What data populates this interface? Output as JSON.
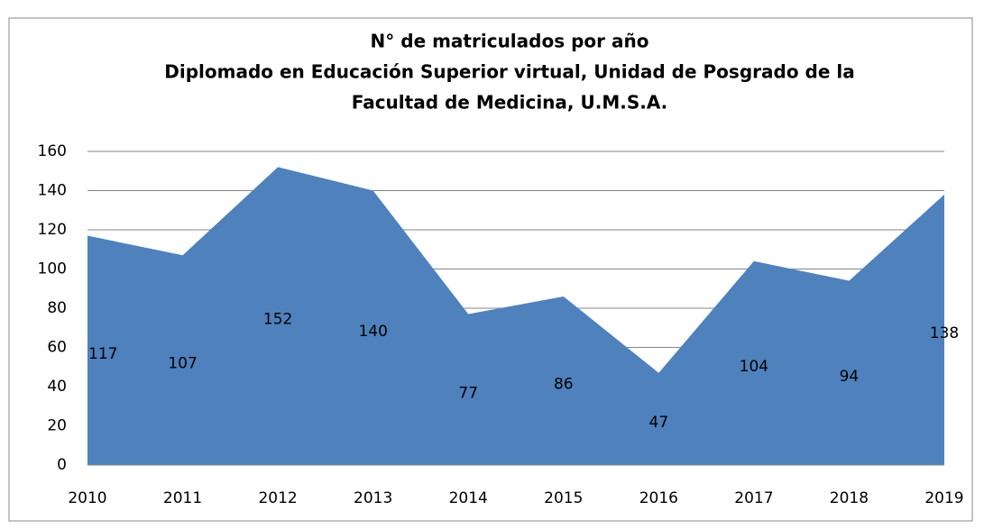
{
  "chart_data": {
    "type": "area",
    "title": [
      "N° de matriculados por año",
      "Diplomado en Educación Superior virtual, Unidad de Posgrado de la",
      "Facultad de Medicina, U.M.S.A."
    ],
    "categories": [
      "2010",
      "2011",
      "2012",
      "2013",
      "2014",
      "2015",
      "2016",
      "2017",
      "2018",
      "2019"
    ],
    "values": [
      117,
      107,
      152,
      140,
      77,
      86,
      47,
      104,
      94,
      138
    ],
    "color": "#4f81bd",
    "ylim": [
      0,
      160
    ],
    "yticks": [
      0,
      20,
      40,
      60,
      80,
      100,
      120,
      140,
      160
    ],
    "grid": true
  }
}
